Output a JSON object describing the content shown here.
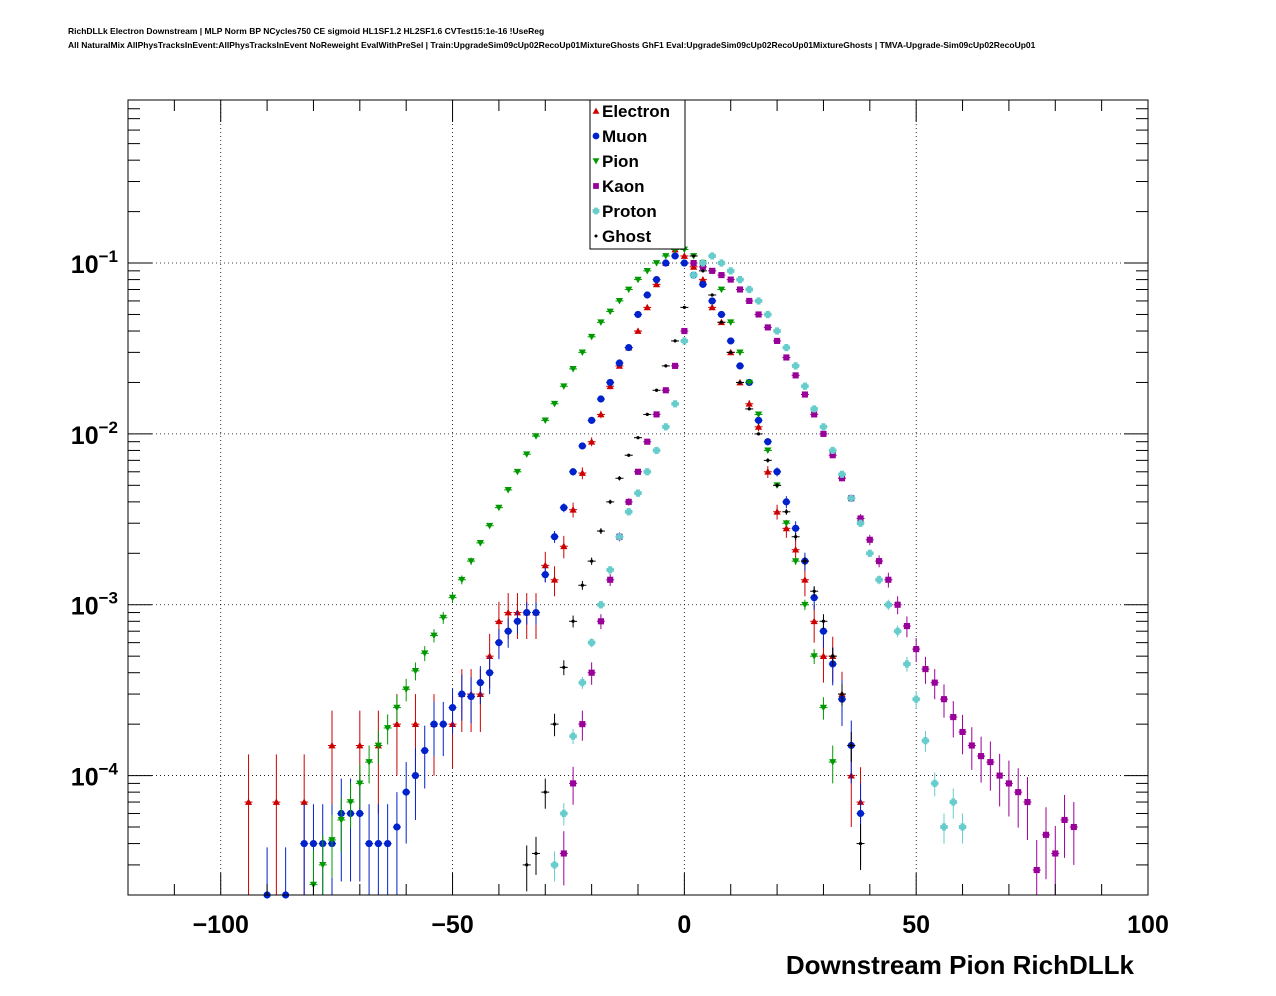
{
  "header": {
    "title_line1": "RichDLLk Electron Downstream | MLP Norm BP NCycles750 CE sigmoid HL1SF1.2 HL2SF1.6 CVTest15:1e-16 !UseReg",
    "title_line2": "All NaturalMix AllPhysTracksInEvent:AllPhysTracksInEvent NoReweight EvalWithPreSel | Train:UpgradeSim09cUp02RecoUp01MixtureGhosts GhF1 Eval:UpgradeSim09cUp02RecoUp01MixtureGhosts | TMVA-Upgrade-Sim09cUp02RecoUp01"
  },
  "chart_data": {
    "type": "scatter",
    "xlabel": "Downstream Pion RichDLLk",
    "ylabel": "",
    "xlim": [
      -120,
      100
    ],
    "ylim": [
      2e-05,
      0.9
    ],
    "yscale": "log",
    "grid": true,
    "legend_position": "top-center",
    "x_ticks": [
      -100,
      -50,
      0,
      50,
      100
    ],
    "x_tick_labels": [
      "−100",
      "−50",
      "0",
      "50",
      "100"
    ],
    "y_ticks": [
      0.0001,
      0.001,
      0.01,
      0.1
    ],
    "y_tick_labels": [
      {
        "base": "10",
        "exp": "−4"
      },
      {
        "base": "10",
        "exp": "−3"
      },
      {
        "base": "10",
        "exp": "−2"
      },
      {
        "base": "10",
        "exp": "−1"
      }
    ],
    "series": [
      {
        "name": "Electron",
        "color": "#cc0000",
        "marker": "triangle-up",
        "x": [
          -94,
          -88,
          -82,
          -76,
          -70,
          -66,
          -62,
          -58,
          -54,
          -50,
          -48,
          -46,
          -44,
          -42,
          -40,
          -38,
          -36,
          -34,
          -32,
          -30,
          -28,
          -26,
          -24,
          -22,
          -20,
          -18,
          -16,
          -14,
          -12,
          -10,
          -8,
          -6,
          -4,
          -2,
          0,
          2,
          4,
          6,
          8,
          10,
          12,
          14,
          16,
          18,
          20,
          22,
          24,
          26,
          28,
          30,
          32,
          34,
          36,
          38
        ],
        "y": [
          7e-05,
          7e-05,
          7e-05,
          0.00015,
          0.00015,
          0.00015,
          0.0002,
          0.0002,
          0.0002,
          0.0002,
          0.0003,
          0.0003,
          0.0003,
          0.0005,
          0.0008,
          0.0009,
          0.0009,
          0.0009,
          0.0009,
          0.0017,
          0.0014,
          0.0022,
          0.0036,
          0.0059,
          0.009,
          0.013,
          0.019,
          0.025,
          0.032,
          0.04,
          0.055,
          0.075,
          0.1,
          0.12,
          0.11,
          0.095,
          0.08,
          0.055,
          0.045,
          0.03,
          0.02,
          0.015,
          0.011,
          0.006,
          0.0035,
          0.0028,
          0.0021,
          0.0014,
          0.0008,
          0.0005,
          0.0005,
          0.0003,
          0.0001,
          7e-05
        ],
        "yerr_frac": [
          0.9,
          0.9,
          0.9,
          0.6,
          0.6,
          0.6,
          0.5,
          0.5,
          0.5,
          0.45,
          0.4,
          0.4,
          0.4,
          0.35,
          0.3,
          0.3,
          0.3,
          0.3,
          0.3,
          0.2,
          0.2,
          0.15,
          0.1,
          0.08,
          0.06,
          0.05,
          0.04,
          0.03,
          0.03,
          0.03,
          0.02,
          0.02,
          0.02,
          0.02,
          0.02,
          0.02,
          0.02,
          0.02,
          0.02,
          0.03,
          0.04,
          0.05,
          0.06,
          0.08,
          0.1,
          0.12,
          0.15,
          0.2,
          0.25,
          0.3,
          0.3,
          0.35,
          0.5,
          0.6
        ]
      },
      {
        "name": "Muon",
        "color": "#0022cc",
        "marker": "circle",
        "x": [
          -90,
          -86,
          -82,
          -80,
          -78,
          -76,
          -74,
          -72,
          -70,
          -68,
          -66,
          -64,
          -62,
          -60,
          -58,
          -56,
          -54,
          -52,
          -50,
          -48,
          -46,
          -44,
          -42,
          -40,
          -38,
          -36,
          -34,
          -32,
          -30,
          -28,
          -26,
          -24,
          -22,
          -20,
          -18,
          -16,
          -14,
          -12,
          -10,
          -8,
          -6,
          -4,
          -2,
          0,
          2,
          4,
          6,
          8,
          10,
          12,
          14,
          16,
          18,
          20,
          22,
          24,
          26,
          28,
          30,
          32,
          34,
          36,
          38
        ],
        "y": [
          2e-05,
          2e-05,
          4e-05,
          4e-05,
          4e-05,
          4e-05,
          6e-05,
          6e-05,
          6e-05,
          4e-05,
          4e-05,
          4e-05,
          5e-05,
          8e-05,
          0.0001,
          0.00014,
          0.0002,
          0.0002,
          0.00025,
          0.0003,
          0.00029,
          0.00035,
          0.0004,
          0.0006,
          0.0007,
          0.0008,
          0.0009,
          0.0009,
          0.0015,
          0.0025,
          0.0037,
          0.006,
          0.0085,
          0.012,
          0.016,
          0.02,
          0.026,
          0.032,
          0.05,
          0.065,
          0.08,
          0.1,
          0.11,
          0.1,
          0.085,
          0.075,
          0.06,
          0.05,
          0.035,
          0.025,
          0.02,
          0.012,
          0.009,
          0.006,
          0.004,
          0.0028,
          0.0018,
          0.0011,
          0.0007,
          0.00045,
          0.00028,
          0.00015,
          6e-05
        ],
        "yerr_frac": [
          0.9,
          0.9,
          0.7,
          0.7,
          0.7,
          0.7,
          0.6,
          0.6,
          0.6,
          0.7,
          0.7,
          0.7,
          0.6,
          0.5,
          0.45,
          0.4,
          0.35,
          0.35,
          0.3,
          0.3,
          0.3,
          0.25,
          0.25,
          0.2,
          0.2,
          0.15,
          0.15,
          0.15,
          0.1,
          0.08,
          0.06,
          0.05,
          0.04,
          0.03,
          0.03,
          0.03,
          0.02,
          0.02,
          0.02,
          0.02,
          0.02,
          0.02,
          0.02,
          0.02,
          0.02,
          0.02,
          0.02,
          0.02,
          0.02,
          0.03,
          0.03,
          0.04,
          0.05,
          0.06,
          0.08,
          0.1,
          0.12,
          0.15,
          0.2,
          0.25,
          0.3,
          0.4,
          0.5
        ]
      },
      {
        "name": "Pion",
        "color": "#009900",
        "marker": "triangle-down",
        "x": [
          -80,
          -78,
          -76,
          -74,
          -72,
          -70,
          -68,
          -66,
          -64,
          -62,
          -60,
          -58,
          -56,
          -54,
          -52,
          -50,
          -48,
          -46,
          -44,
          -42,
          -40,
          -38,
          -36,
          -34,
          -32,
          -30,
          -28,
          -26,
          -24,
          -22,
          -20,
          -18,
          -16,
          -14,
          -12,
          -10,
          -8,
          -6,
          -4,
          -2,
          0,
          2,
          4,
          6,
          8,
          10,
          12,
          14,
          16,
          18,
          20,
          22,
          24,
          26,
          28,
          30,
          32
        ],
        "y": [
          2.3e-05,
          3e-05,
          4.2e-05,
          5.5e-05,
          7e-05,
          9e-05,
          0.00012,
          0.00015,
          0.00019,
          0.00025,
          0.00032,
          0.00041,
          0.00052,
          0.00066,
          0.00084,
          0.0011,
          0.0014,
          0.0018,
          0.0023,
          0.0029,
          0.0037,
          0.0047,
          0.006,
          0.0076,
          0.0097,
          0.012,
          0.015,
          0.019,
          0.024,
          0.03,
          0.037,
          0.045,
          0.052,
          0.06,
          0.07,
          0.08,
          0.09,
          0.1,
          0.11,
          0.12,
          0.12,
          0.11,
          0.1,
          0.09,
          0.07,
          0.045,
          0.03,
          0.02,
          0.013,
          0.008,
          0.005,
          0.003,
          0.0018,
          0.001,
          0.0005,
          0.00025,
          0.00012
        ],
        "yerr_frac": [
          0.6,
          0.5,
          0.4,
          0.35,
          0.3,
          0.28,
          0.25,
          0.22,
          0.2,
          0.18,
          0.15,
          0.12,
          0.1,
          0.09,
          0.08,
          0.07,
          0.06,
          0.05,
          0.04,
          0.03,
          0.03,
          0.02,
          0.02,
          0.02,
          0.02,
          0.02,
          0.02,
          0.02,
          0.02,
          0.02,
          0.02,
          0.02,
          0.02,
          0.02,
          0.02,
          0.02,
          0.02,
          0.02,
          0.02,
          0.02,
          0.02,
          0.02,
          0.02,
          0.02,
          0.02,
          0.02,
          0.02,
          0.02,
          0.02,
          0.02,
          0.03,
          0.04,
          0.05,
          0.07,
          0.1,
          0.15,
          0.25
        ]
      },
      {
        "name": "Kaon",
        "color": "#990099",
        "marker": "square",
        "x": [
          -26,
          -24,
          -22,
          -20,
          -18,
          -16,
          -14,
          -12,
          -10,
          -8,
          -6,
          -4,
          -2,
          0,
          2,
          4,
          6,
          8,
          10,
          12,
          14,
          16,
          18,
          20,
          22,
          24,
          26,
          28,
          30,
          32,
          34,
          36,
          38,
          40,
          42,
          44,
          46,
          48,
          50,
          52,
          54,
          56,
          58,
          60,
          62,
          64,
          66,
          68,
          70,
          72,
          74,
          76,
          78,
          80,
          82,
          84
        ],
        "y": [
          3.5e-05,
          9e-05,
          0.0002,
          0.0004,
          0.0008,
          0.0014,
          0.0025,
          0.004,
          0.006,
          0.009,
          0.013,
          0.018,
          0.025,
          0.04,
          0.1,
          0.095,
          0.09,
          0.085,
          0.08,
          0.07,
          0.06,
          0.05,
          0.042,
          0.035,
          0.028,
          0.022,
          0.017,
          0.013,
          0.01,
          0.0075,
          0.0055,
          0.0042,
          0.0032,
          0.0024,
          0.0018,
          0.0014,
          0.001,
          0.00075,
          0.00055,
          0.00042,
          0.00035,
          0.00028,
          0.00022,
          0.00018,
          0.00015,
          0.00013,
          0.00012,
          0.0001,
          9e-05,
          8e-05,
          7e-05,
          2.8e-05,
          4.5e-05,
          3.5e-05,
          5.5e-05,
          5e-05
        ],
        "yerr_frac": [
          0.35,
          0.25,
          0.2,
          0.15,
          0.1,
          0.08,
          0.06,
          0.05,
          0.04,
          0.03,
          0.03,
          0.02,
          0.02,
          0.02,
          0.02,
          0.02,
          0.02,
          0.02,
          0.02,
          0.02,
          0.02,
          0.02,
          0.02,
          0.02,
          0.02,
          0.02,
          0.02,
          0.03,
          0.03,
          0.03,
          0.04,
          0.05,
          0.06,
          0.07,
          0.08,
          0.1,
          0.12,
          0.14,
          0.16,
          0.18,
          0.2,
          0.22,
          0.24,
          0.26,
          0.28,
          0.3,
          0.32,
          0.34,
          0.36,
          0.38,
          0.4,
          0.5,
          0.45,
          0.45,
          0.4,
          0.4
        ]
      },
      {
        "name": "Proton",
        "color": "#66cccc",
        "marker": "cross",
        "x": [
          -28,
          -26,
          -24,
          -22,
          -20,
          -18,
          -16,
          -14,
          -12,
          -10,
          -8,
          -6,
          -4,
          -2,
          0,
          2,
          4,
          6,
          8,
          10,
          12,
          14,
          16,
          18,
          20,
          22,
          24,
          26,
          28,
          30,
          32,
          34,
          36,
          38,
          40,
          42,
          44,
          46,
          48,
          50,
          52,
          54,
          56,
          58,
          60
        ],
        "y": [
          3e-05,
          6e-05,
          0.00017,
          0.00035,
          0.0006,
          0.001,
          0.0016,
          0.0025,
          0.0035,
          0.0045,
          0.006,
          0.008,
          0.011,
          0.015,
          0.035,
          0.085,
          0.1,
          0.11,
          0.1,
          0.09,
          0.08,
          0.07,
          0.06,
          0.05,
          0.04,
          0.032,
          0.025,
          0.019,
          0.014,
          0.011,
          0.008,
          0.0058,
          0.0042,
          0.003,
          0.002,
          0.0014,
          0.001,
          0.0007,
          0.00045,
          0.00028,
          0.00016,
          9e-05,
          5e-05,
          7e-05,
          5e-05
        ],
        "yerr_frac": [
          0.2,
          0.15,
          0.1,
          0.08,
          0.06,
          0.05,
          0.04,
          0.03,
          0.03,
          0.02,
          0.02,
          0.02,
          0.02,
          0.02,
          0.02,
          0.02,
          0.02,
          0.02,
          0.02,
          0.02,
          0.02,
          0.02,
          0.02,
          0.02,
          0.02,
          0.02,
          0.02,
          0.02,
          0.02,
          0.02,
          0.02,
          0.03,
          0.03,
          0.04,
          0.05,
          0.06,
          0.07,
          0.08,
          0.1,
          0.12,
          0.14,
          0.16,
          0.2,
          0.2,
          0.2
        ]
      },
      {
        "name": "Ghost",
        "color": "#000000",
        "marker": "dot",
        "x": [
          -34,
          -32,
          -30,
          -28,
          -26,
          -24,
          -22,
          -20,
          -18,
          -16,
          -14,
          -12,
          -10,
          -8,
          -6,
          -4,
          -2,
          0,
          2,
          4,
          6,
          8,
          10,
          12,
          14,
          16,
          18,
          20,
          22,
          24,
          26,
          28,
          30,
          32,
          34,
          36,
          38
        ],
        "y": [
          3e-05,
          3.5e-05,
          8e-05,
          0.0002,
          0.00043,
          0.0008,
          0.0013,
          0.0018,
          0.0027,
          0.004,
          0.0055,
          0.0075,
          0.0095,
          0.013,
          0.018,
          0.025,
          0.035,
          0.055,
          0.11,
          0.09,
          0.065,
          0.045,
          0.03,
          0.02,
          0.014,
          0.01,
          0.007,
          0.005,
          0.0035,
          0.0025,
          0.0018,
          0.0012,
          0.0008,
          0.0005,
          0.0003,
          0.00015,
          4e-05
        ],
        "yerr_frac": [
          0.3,
          0.25,
          0.2,
          0.15,
          0.1,
          0.08,
          0.06,
          0.05,
          0.04,
          0.03,
          0.03,
          0.02,
          0.02,
          0.02,
          0.02,
          0.02,
          0.02,
          0.02,
          0.02,
          0.02,
          0.02,
          0.02,
          0.02,
          0.02,
          0.02,
          0.02,
          0.03,
          0.03,
          0.04,
          0.05,
          0.06,
          0.07,
          0.1,
          0.12,
          0.15,
          0.2,
          0.3
        ]
      }
    ]
  }
}
